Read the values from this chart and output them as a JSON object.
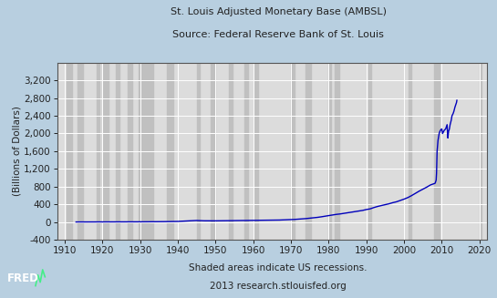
{
  "title_line1": "St. Louis Adjusted Monetary Base (AMBSL)",
  "title_line2": "Source: Federal Reserve Bank of St. Louis",
  "ylabel": "(Billions of Dollars)",
  "footer_line1": "Shaded areas indicate US recessions.",
  "footer_line2": "2013 research.stlouisfed.org",
  "background_color": "#b8cfe0",
  "plot_background_color": "#dcdcdc",
  "line_color": "#0000bb",
  "recession_color": "#c0c0c0",
  "grid_color": "#ffffff",
  "ylim": [
    -400,
    3600
  ],
  "yticks": [
    -400,
    0,
    400,
    800,
    1200,
    1600,
    2000,
    2400,
    2800,
    3200
  ],
  "xlim": [
    1908,
    2022
  ],
  "xticks": [
    1910,
    1920,
    1930,
    1940,
    1950,
    1960,
    1970,
    1980,
    1990,
    2000,
    2010,
    2020
  ],
  "recession_bands": [
    [
      1910.5,
      1912.0
    ],
    [
      1913.5,
      1914.8
    ],
    [
      1918.5,
      1919.2
    ],
    [
      1920.0,
      1921.5
    ],
    [
      1923.5,
      1924.5
    ],
    [
      1926.8,
      1927.8
    ],
    [
      1929.5,
      1933.5
    ],
    [
      1937.2,
      1938.7
    ],
    [
      1945.0,
      1945.8
    ],
    [
      1948.8,
      1949.8
    ],
    [
      1953.5,
      1954.5
    ],
    [
      1957.7,
      1958.5
    ],
    [
      1960.2,
      1961.2
    ],
    [
      1969.9,
      1970.9
    ],
    [
      1973.8,
      1975.2
    ],
    [
      1980.0,
      1980.7
    ],
    [
      1981.5,
      1982.9
    ],
    [
      1990.5,
      1991.2
    ],
    [
      2001.2,
      2001.9
    ],
    [
      2007.9,
      2009.5
    ],
    [
      2020.0,
      2020.5
    ]
  ],
  "data_years": [
    1913,
    1914,
    1915,
    1916,
    1917,
    1918,
    1919,
    1920,
    1921,
    1922,
    1923,
    1924,
    1925,
    1926,
    1927,
    1928,
    1929,
    1930,
    1931,
    1932,
    1933,
    1934,
    1935,
    1936,
    1937,
    1938,
    1939,
    1940,
    1941,
    1942,
    1943,
    1944,
    1945,
    1946,
    1947,
    1948,
    1949,
    1950,
    1951,
    1952,
    1953,
    1954,
    1955,
    1956,
    1957,
    1958,
    1959,
    1960,
    1961,
    1962,
    1963,
    1964,
    1965,
    1966,
    1967,
    1968,
    1969,
    1970,
    1971,
    1972,
    1973,
    1974,
    1975,
    1976,
    1977,
    1978,
    1979,
    1980,
    1981,
    1982,
    1983,
    1984,
    1985,
    1986,
    1987,
    1988,
    1989,
    1990,
    1991,
    1992,
    1993,
    1994,
    1995,
    1996,
    1997,
    1998,
    1999,
    2000,
    2001,
    2002,
    2003,
    2004,
    2005,
    2006,
    2007,
    2008.0,
    2008.25,
    2008.5,
    2008.6,
    2008.75,
    2008.9,
    2009.0,
    2009.1,
    2009.2,
    2009.3,
    2009.5,
    2009.7,
    2009.9,
    2010.0,
    2010.1,
    2010.2,
    2010.5,
    2010.7,
    2011.0,
    2011.2,
    2011.4,
    2011.5,
    2011.6,
    2011.8,
    2012.0,
    2012.2,
    2012.5,
    2012.7,
    2013.0,
    2013.2,
    2013.5,
    2013.7,
    2013.9,
    2014.0
  ],
  "data_values": [
    4.5,
    4.6,
    4.7,
    4.9,
    5.1,
    5.3,
    6.5,
    7.0,
    6.0,
    5.5,
    5.5,
    6.0,
    6.2,
    6.4,
    6.6,
    6.8,
    7.0,
    7.5,
    8.0,
    8.5,
    9.0,
    10.0,
    11.0,
    12.0,
    13.0,
    13.5,
    15.0,
    17.0,
    21.0,
    25.0,
    30.0,
    35.0,
    38.0,
    34.0,
    31.0,
    30.0,
    29.0,
    30.0,
    31.0,
    32.0,
    33.0,
    33.0,
    34.0,
    34.0,
    35.0,
    36.0,
    37.0,
    38.0,
    39.0,
    40.0,
    41.0,
    42.0,
    44.0,
    46.0,
    48.0,
    51.0,
    54.0,
    57.0,
    62.0,
    68.0,
    74.0,
    81.0,
    90.0,
    98.0,
    108.0,
    120.0,
    135.0,
    148.0,
    162.0,
    175.0,
    185.0,
    198.0,
    210.0,
    225.0,
    235.0,
    248.0,
    265.0,
    285.0,
    300.0,
    330.0,
    355.0,
    375.0,
    395.0,
    415.0,
    440.0,
    460.0,
    490.0,
    520.0,
    555.0,
    600.0,
    650.0,
    700.0,
    745.0,
    790.0,
    840.0,
    870.0,
    880.0,
    950.0,
    1100.0,
    1600.0,
    1750.0,
    1850.0,
    1900.0,
    1950.0,
    2000.0,
    2050.0,
    2080.0,
    2100.0,
    2100.0,
    2050.0,
    2000.0,
    2050.0,
    2080.0,
    2100.0,
    2150.0,
    2200.0,
    2050.0,
    1900.0,
    2050.0,
    2100.0,
    2200.0,
    2300.0,
    2400.0,
    2450.0,
    2500.0,
    2600.0,
    2650.0,
    2700.0,
    2750.0
  ]
}
